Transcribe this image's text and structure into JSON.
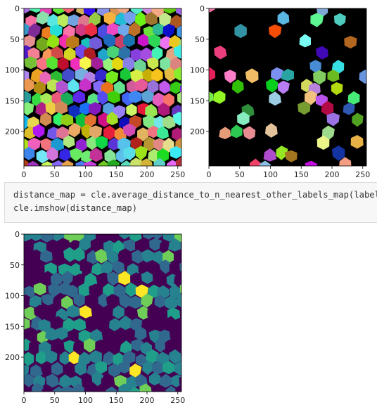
{
  "plots": [
    {
      "name": "label-image-plot",
      "kind": "labels",
      "x_ticks": [
        "0",
        "50",
        "100",
        "150",
        "200",
        "250"
      ],
      "y_ticks": [
        "0",
        "50",
        "100",
        "150",
        "200"
      ],
      "x_range": [
        0,
        256
      ],
      "y_range": [
        0,
        256
      ],
      "background": "#000000"
    },
    {
      "name": "filtered-label-plot",
      "kind": "sparse-labels",
      "x_ticks": [
        "0",
        "50",
        "100",
        "150",
        "200",
        "250"
      ],
      "y_ticks": [
        "0",
        "50",
        "100",
        "150",
        "200"
      ],
      "x_range": [
        0,
        256
      ],
      "y_range": [
        0,
        256
      ],
      "background": "#000000"
    },
    {
      "name": "distance-map-plot",
      "kind": "viridis",
      "x_ticks": [
        "0",
        "50",
        "100",
        "150",
        "200",
        "250"
      ],
      "y_ticks": [
        "0",
        "50",
        "100",
        "150",
        "200"
      ],
      "x_range": [
        0,
        256
      ],
      "y_range": [
        0,
        256
      ],
      "background": "#440154"
    }
  ],
  "code_cell": {
    "line1": "distance_map = cle.average_distance_to_n_nearest_other_labels_map(label_i",
    "line2": "cle.imshow(distance_map)"
  },
  "colors": {
    "viridis_dark": "#440154",
    "viridis_mid": "#26828e",
    "viridis_light": "#5ec962",
    "viridis_yellow": "#fde725"
  }
}
